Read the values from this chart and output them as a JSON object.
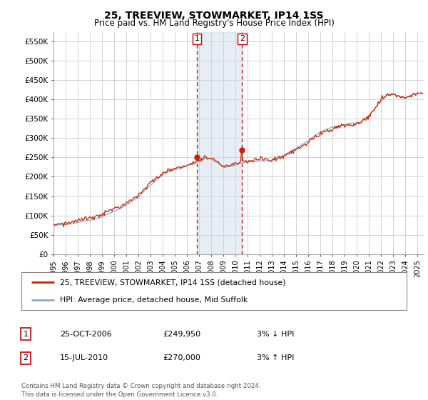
{
  "title": "25, TREEVIEW, STOWMARKET, IP14 1SS",
  "subtitle": "Price paid vs. HM Land Registry's House Price Index (HPI)",
  "yticks": [
    0,
    50000,
    100000,
    150000,
    200000,
    250000,
    300000,
    350000,
    400000,
    450000,
    500000,
    550000
  ],
  "ytick_labels": [
    "£0",
    "£50K",
    "£100K",
    "£150K",
    "£200K",
    "£250K",
    "£300K",
    "£350K",
    "£400K",
    "£450K",
    "£500K",
    "£550K"
  ],
  "ylim": [
    0,
    575000
  ],
  "xlim_start": 1995.0,
  "xlim_end": 2025.5,
  "marker1_x": 2006.82,
  "marker2_x": 2010.54,
  "marker1_label": "1",
  "marker2_label": "2",
  "marker1_y": 249950,
  "marker2_y": 270000,
  "shade_color": "#c8d8e8",
  "shade_alpha": 0.45,
  "vline_color": "#cc0000",
  "vline_style": "--",
  "red_line_color": "#cc2200",
  "blue_line_color": "#88aacc",
  "grid_color": "#cccccc",
  "bg_color": "#ffffff",
  "legend_label_red": "25, TREEVIEW, STOWMARKET, IP14 1SS (detached house)",
  "legend_label_blue": "HPI: Average price, detached house, Mid Suffolk",
  "table_row1": [
    "1",
    "25-OCT-2006",
    "£249,950",
    "3% ↓ HPI"
  ],
  "table_row2": [
    "2",
    "15-JUL-2010",
    "£270,000",
    "3% ↑ HPI"
  ],
  "footer": "Contains HM Land Registry data © Crown copyright and database right 2024.\nThis data is licensed under the Open Government Licence v3.0.",
  "xticks": [
    1995,
    1996,
    1997,
    1998,
    1999,
    2000,
    2001,
    2002,
    2003,
    2004,
    2005,
    2006,
    2007,
    2008,
    2009,
    2010,
    2011,
    2012,
    2013,
    2014,
    2015,
    2016,
    2017,
    2018,
    2019,
    2020,
    2021,
    2022,
    2023,
    2024,
    2025
  ]
}
